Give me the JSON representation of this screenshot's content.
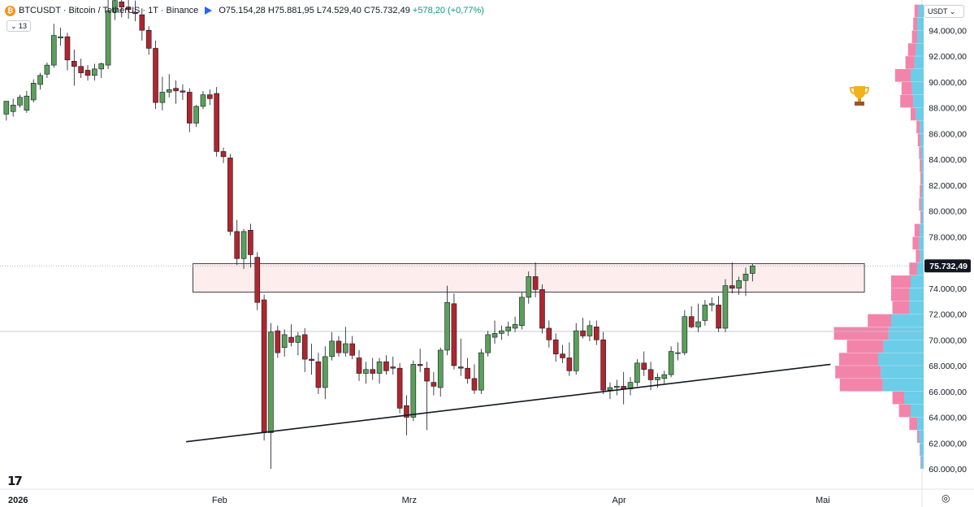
{
  "header": {
    "symbol": "BTCUSDT · Bitcoin / TetherUS · 1T · Binance",
    "open": "O75.154,28",
    "high": "H75.881,95",
    "low": "L74.529,40",
    "close": "C75.732,49",
    "change": "+578,20 (+0,77%)",
    "coin_glyph": "₿",
    "indicator_count": "13",
    "currency": "USDT",
    "logo": "17"
  },
  "colors": {
    "up": "#5aa05a",
    "down": "#b0262e",
    "zone_fill": "#fde8e8",
    "vp_pink": "#f06f9b",
    "vp_cyan": "#5bc8e6",
    "price_badge": "#131722"
  },
  "chart_data": {
    "type": "candlestick",
    "symbol": "BTCUSDT",
    "timeframe": "1T",
    "ylim": [
      59400,
      96400
    ],
    "y_ticks": [
      {
        "value": 60000,
        "label": "60.000,00"
      },
      {
        "value": 62000,
        "label": "62.000,00"
      },
      {
        "value": 64000,
        "label": "64.000,00"
      },
      {
        "value": 66000,
        "label": "66.000,00"
      },
      {
        "value": 68000,
        "label": "68.000,00"
      },
      {
        "value": 70000,
        "label": "70.000,00"
      },
      {
        "value": 72000,
        "label": "72.000,00"
      },
      {
        "value": 74000,
        "label": "74.000,00"
      },
      {
        "value": 76000,
        "label": "76.000,00"
      },
      {
        "value": 78000,
        "label": "78.000,00"
      },
      {
        "value": 80000,
        "label": "80.000,00"
      },
      {
        "value": 82000,
        "label": "82.000,00"
      },
      {
        "value": 84000,
        "label": "84.000,00"
      },
      {
        "value": 86000,
        "label": "86.000,00"
      },
      {
        "value": 88000,
        "label": "88.000,00"
      },
      {
        "value": 90000,
        "label": "90.000,00"
      },
      {
        "value": 92000,
        "label": "92.000,00"
      },
      {
        "value": 94000,
        "label": "94.000,00"
      }
    ],
    "x_labels": [
      {
        "day": 0,
        "label": "2026"
      },
      {
        "day": 31,
        "label": "Feb"
      },
      {
        "day": 59,
        "label": "Mrz"
      },
      {
        "day": 90,
        "label": "Apr"
      },
      {
        "day": 120,
        "label": "Mai"
      }
    ],
    "last_price": {
      "value": 75732.49,
      "label": "75.732,49"
    },
    "reference_line": 70650,
    "resistance_zone": {
      "from_day": 27,
      "to_day": 126,
      "low": 73700,
      "high": 75900
    },
    "trendline": {
      "from": {
        "day": 26,
        "price": 62100
      },
      "to": {
        "day": 121,
        "price": 68100
      }
    },
    "candles": [
      {
        "day": -0.5,
        "o": 87500,
        "h": 88500,
        "l": 87000,
        "c": 88500
      },
      {
        "day": 0.5,
        "o": 87700,
        "h": 88700,
        "l": 87300,
        "c": 88200
      },
      {
        "day": 1.5,
        "o": 88200,
        "h": 89000,
        "l": 88000,
        "c": 88800
      },
      {
        "day": 2.5,
        "o": 87800,
        "h": 89300,
        "l": 87600,
        "c": 88900
      },
      {
        "day": 3.5,
        "o": 88600,
        "h": 90200,
        "l": 88400,
        "c": 89900
      },
      {
        "day": 4.5,
        "o": 89800,
        "h": 90700,
        "l": 89400,
        "c": 90500
      },
      {
        "day": 5.5,
        "o": 90600,
        "h": 91500,
        "l": 90300,
        "c": 91300
      },
      {
        "day": 6.5,
        "o": 91300,
        "h": 94500,
        "l": 91100,
        "c": 93600
      },
      {
        "day": 7.5,
        "o": 93400,
        "h": 94200,
        "l": 92800,
        "c": 93500
      },
      {
        "day": 8.5,
        "o": 93500,
        "h": 93800,
        "l": 90900,
        "c": 91700
      },
      {
        "day": 9.5,
        "o": 91600,
        "h": 92500,
        "l": 89700,
        "c": 91200
      },
      {
        "day": 10.5,
        "o": 91200,
        "h": 91800,
        "l": 90300,
        "c": 90700
      },
      {
        "day": 11.5,
        "o": 90900,
        "h": 91300,
        "l": 90100,
        "c": 90500
      },
      {
        "day": 12.5,
        "o": 90500,
        "h": 91400,
        "l": 90100,
        "c": 91000
      },
      {
        "day": 13.5,
        "o": 91000,
        "h": 91500,
        "l": 90300,
        "c": 91400
      },
      {
        "day": 14.5,
        "o": 91300,
        "h": 96400,
        "l": 91000,
        "c": 95500
      },
      {
        "day": 15.5,
        "o": 95400,
        "h": 97800,
        "l": 94800,
        "c": 96300
      },
      {
        "day": 16.5,
        "o": 96200,
        "h": 97000,
        "l": 95000,
        "c": 95800
      },
      {
        "day": 17.5,
        "o": 95800,
        "h": 96500,
        "l": 94900,
        "c": 95600
      },
      {
        "day": 18.5,
        "o": 95400,
        "h": 96300,
        "l": 94700,
        "c": 95300
      },
      {
        "day": 19.5,
        "o": 95200,
        "h": 95700,
        "l": 93200,
        "c": 94000
      },
      {
        "day": 20.5,
        "o": 94000,
        "h": 94300,
        "l": 92100,
        "c": 92600
      },
      {
        "day": 21.5,
        "o": 92600,
        "h": 93200,
        "l": 87900,
        "c": 88400
      },
      {
        "day": 22.5,
        "o": 88400,
        "h": 90400,
        "l": 87800,
        "c": 89200
      },
      {
        "day": 23.5,
        "o": 89200,
        "h": 90600,
        "l": 88800,
        "c": 89400
      },
      {
        "day": 24.5,
        "o": 89500,
        "h": 90100,
        "l": 88300,
        "c": 89300
      },
      {
        "day": 25.5,
        "o": 89300,
        "h": 89800,
        "l": 88600,
        "c": 89200
      },
      {
        "day": 26.5,
        "o": 89200,
        "h": 89500,
        "l": 86100,
        "c": 86800
      },
      {
        "day": 27.5,
        "o": 86800,
        "h": 88200,
        "l": 86500,
        "c": 88100
      },
      {
        "day": 28.5,
        "o": 88100,
        "h": 89300,
        "l": 87900,
        "c": 89000
      },
      {
        "day": 29.5,
        "o": 89000,
        "h": 89400,
        "l": 88200,
        "c": 88700
      },
      {
        "day": 30.5,
        "o": 89100,
        "h": 89600,
        "l": 84200,
        "c": 84600
      },
      {
        "day": 31.5,
        "o": 84600,
        "h": 84900,
        "l": 83700,
        "c": 84200
      },
      {
        "day": 32.5,
        "o": 84100,
        "h": 84400,
        "l": 78100,
        "c": 78400
      },
      {
        "day": 33.5,
        "o": 78400,
        "h": 79300,
        "l": 75800,
        "c": 76300
      },
      {
        "day": 34.5,
        "o": 76300,
        "h": 78600,
        "l": 75500,
        "c": 78400
      },
      {
        "day": 35.5,
        "o": 78500,
        "h": 79000,
        "l": 75600,
        "c": 76600
      },
      {
        "day": 36.5,
        "o": 76400,
        "h": 76800,
        "l": 72300,
        "c": 72900
      },
      {
        "day": 37.5,
        "o": 73100,
        "h": 73500,
        "l": 62200,
        "c": 62800
      },
      {
        "day": 38.5,
        "o": 62800,
        "h": 71300,
        "l": 60000,
        "c": 70600
      },
      {
        "day": 39.5,
        "o": 70700,
        "h": 71100,
        "l": 68600,
        "c": 69000
      },
      {
        "day": 40.5,
        "o": 69400,
        "h": 70800,
        "l": 68700,
        "c": 70400
      },
      {
        "day": 41.5,
        "o": 70200,
        "h": 71200,
        "l": 69500,
        "c": 69800
      },
      {
        "day": 42.5,
        "o": 69800,
        "h": 70600,
        "l": 68800,
        "c": 70300
      },
      {
        "day": 43.5,
        "o": 70400,
        "h": 70900,
        "l": 67500,
        "c": 68500
      },
      {
        "day": 44.5,
        "o": 68500,
        "h": 69700,
        "l": 67300,
        "c": 68400
      },
      {
        "day": 45.5,
        "o": 68300,
        "h": 69000,
        "l": 65800,
        "c": 66300
      },
      {
        "day": 46.5,
        "o": 66300,
        "h": 69500,
        "l": 65400,
        "c": 68700
      },
      {
        "day": 47.5,
        "o": 68700,
        "h": 70600,
        "l": 68400,
        "c": 69900
      },
      {
        "day": 48.5,
        "o": 69900,
        "h": 70300,
        "l": 68700,
        "c": 69000
      },
      {
        "day": 49.5,
        "o": 69000,
        "h": 71000,
        "l": 68700,
        "c": 69700
      },
      {
        "day": 50.5,
        "o": 69700,
        "h": 70300,
        "l": 68500,
        "c": 68800
      },
      {
        "day": 51.5,
        "o": 68600,
        "h": 69200,
        "l": 66800,
        "c": 67400
      },
      {
        "day": 52.5,
        "o": 67400,
        "h": 68300,
        "l": 66600,
        "c": 67700
      },
      {
        "day": 53.5,
        "o": 67700,
        "h": 68600,
        "l": 66900,
        "c": 67400
      },
      {
        "day": 54.5,
        "o": 67400,
        "h": 68600,
        "l": 66600,
        "c": 68300
      },
      {
        "day": 55.5,
        "o": 68300,
        "h": 68800,
        "l": 67300,
        "c": 67600
      },
      {
        "day": 56.5,
        "o": 67900,
        "h": 68700,
        "l": 67300,
        "c": 67800
      },
      {
        "day": 57.5,
        "o": 67800,
        "h": 68200,
        "l": 64300,
        "c": 64700
      },
      {
        "day": 58.5,
        "o": 64900,
        "h": 65700,
        "l": 62600,
        "c": 64000
      },
      {
        "day": 59.5,
        "o": 64000,
        "h": 68400,
        "l": 63700,
        "c": 68100
      },
      {
        "day": 60.5,
        "o": 68100,
        "h": 69300,
        "l": 67500,
        "c": 68000
      },
      {
        "day": 61.5,
        "o": 67800,
        "h": 68300,
        "l": 63000,
        "c": 66800
      },
      {
        "day": 62.5,
        "o": 66700,
        "h": 67500,
        "l": 65700,
        "c": 66400
      },
      {
        "day": 63.5,
        "o": 66300,
        "h": 69400,
        "l": 65600,
        "c": 69200
      },
      {
        "day": 64.5,
        "o": 69200,
        "h": 74200,
        "l": 68800,
        "c": 72900
      },
      {
        "day": 65.5,
        "o": 72800,
        "h": 73600,
        "l": 67700,
        "c": 68000
      },
      {
        "day": 66.5,
        "o": 67900,
        "h": 70100,
        "l": 67200,
        "c": 67800
      },
      {
        "day": 67.5,
        "o": 67800,
        "h": 68600,
        "l": 66600,
        "c": 67000
      },
      {
        "day": 68.5,
        "o": 67000,
        "h": 68100,
        "l": 65800,
        "c": 66100
      },
      {
        "day": 69.5,
        "o": 66100,
        "h": 69300,
        "l": 65800,
        "c": 69000
      },
      {
        "day": 70.5,
        "o": 69000,
        "h": 70700,
        "l": 68700,
        "c": 70400
      },
      {
        "day": 71.5,
        "o": 70200,
        "h": 71500,
        "l": 69700,
        "c": 70500
      },
      {
        "day": 72.5,
        "o": 70500,
        "h": 71100,
        "l": 70000,
        "c": 70700
      },
      {
        "day": 73.5,
        "o": 70700,
        "h": 71400,
        "l": 70300,
        "c": 71000
      },
      {
        "day": 74.5,
        "o": 70900,
        "h": 71800,
        "l": 70600,
        "c": 71200
      },
      {
        "day": 75.5,
        "o": 71100,
        "h": 73700,
        "l": 70800,
        "c": 73300
      },
      {
        "day": 76.5,
        "o": 73300,
        "h": 75300,
        "l": 72800,
        "c": 74900
      },
      {
        "day": 77.5,
        "o": 74900,
        "h": 76000,
        "l": 73300,
        "c": 73900
      },
      {
        "day": 78.5,
        "o": 73900,
        "h": 74300,
        "l": 70500,
        "c": 70900
      },
      {
        "day": 79.5,
        "o": 70900,
        "h": 71500,
        "l": 69400,
        "c": 70000
      },
      {
        "day": 80.5,
        "o": 70000,
        "h": 70500,
        "l": 68300,
        "c": 68900
      },
      {
        "day": 81.5,
        "o": 68900,
        "h": 69600,
        "l": 68200,
        "c": 68600
      },
      {
        "day": 82.5,
        "o": 68600,
        "h": 69800,
        "l": 67200,
        "c": 67600
      },
      {
        "day": 83.5,
        "o": 67600,
        "h": 71300,
        "l": 67300,
        "c": 70700
      },
      {
        "day": 84.5,
        "o": 70700,
        "h": 71700,
        "l": 70100,
        "c": 70300
      },
      {
        "day": 85.5,
        "o": 70300,
        "h": 71500,
        "l": 69900,
        "c": 71100
      },
      {
        "day": 86.5,
        "o": 71000,
        "h": 71500,
        "l": 69600,
        "c": 70000
      },
      {
        "day": 87.5,
        "o": 70000,
        "h": 70600,
        "l": 65800,
        "c": 66100
      },
      {
        "day": 88.5,
        "o": 66100,
        "h": 66700,
        "l": 65400,
        "c": 66300
      },
      {
        "day": 89.5,
        "o": 66300,
        "h": 66900,
        "l": 65700,
        "c": 66400
      },
      {
        "day": 90.5,
        "o": 66400,
        "h": 67500,
        "l": 65000,
        "c": 66200
      },
      {
        "day": 91.5,
        "o": 66200,
        "h": 67100,
        "l": 65700,
        "c": 66700
      },
      {
        "day": 92.5,
        "o": 66700,
        "h": 68500,
        "l": 66400,
        "c": 68200
      },
      {
        "day": 93.5,
        "o": 68200,
        "h": 69100,
        "l": 67200,
        "c": 67700
      },
      {
        "day": 94.5,
        "o": 67700,
        "h": 68300,
        "l": 66100,
        "c": 66900
      },
      {
        "day": 95.5,
        "o": 66900,
        "h": 67400,
        "l": 66300,
        "c": 67100
      },
      {
        "day": 96.5,
        "o": 67000,
        "h": 67600,
        "l": 66600,
        "c": 67300
      },
      {
        "day": 97.5,
        "o": 67300,
        "h": 69500,
        "l": 67100,
        "c": 69100
      },
      {
        "day": 98.5,
        "o": 69000,
        "h": 69800,
        "l": 68400,
        "c": 69000
      },
      {
        "day": 99.5,
        "o": 69000,
        "h": 72300,
        "l": 68800,
        "c": 71800
      },
      {
        "day": 100.5,
        "o": 71800,
        "h": 72600,
        "l": 70900,
        "c": 71000
      },
      {
        "day": 101.5,
        "o": 71000,
        "h": 72800,
        "l": 70600,
        "c": 71400
      },
      {
        "day": 102.5,
        "o": 71500,
        "h": 73100,
        "l": 71100,
        "c": 72700
      },
      {
        "day": 103.5,
        "o": 72700,
        "h": 73300,
        "l": 72200,
        "c": 72800
      },
      {
        "day": 104.5,
        "o": 72700,
        "h": 73400,
        "l": 70600,
        "c": 70900
      },
      {
        "day": 105.5,
        "o": 70900,
        "h": 74700,
        "l": 70600,
        "c": 74200
      },
      {
        "day": 106.5,
        "o": 74200,
        "h": 76000,
        "l": 73600,
        "c": 74000
      },
      {
        "day": 107.5,
        "o": 74000,
        "h": 74900,
        "l": 73500,
        "c": 74600
      },
      {
        "day": 108.5,
        "o": 74600,
        "h": 75600,
        "l": 73400,
        "c": 75100
      },
      {
        "day": 109.5,
        "o": 75150,
        "h": 75880,
        "l": 74530,
        "c": 75730
      }
    ],
    "volume_profile": [
      {
        "price": 60500,
        "buy": 4,
        "sell": 1
      },
      {
        "price": 61500,
        "buy": 5,
        "sell": 1
      },
      {
        "price": 62500,
        "buy": 7,
        "sell": 3
      },
      {
        "price": 63500,
        "buy": 10,
        "sell": 12
      },
      {
        "price": 64500,
        "buy": 20,
        "sell": 18
      },
      {
        "price": 65500,
        "buy": 30,
        "sell": 18
      },
      {
        "price": 66500,
        "buy": 63,
        "sell": 66
      },
      {
        "price": 67500,
        "buy": 66,
        "sell": 70
      },
      {
        "price": 68500,
        "buy": 70,
        "sell": 60
      },
      {
        "price": 69500,
        "buy": 62,
        "sell": 56
      },
      {
        "price": 70500,
        "buy": 54,
        "sell": 84
      },
      {
        "price": 71500,
        "buy": 50,
        "sell": 36
      },
      {
        "price": 72500,
        "buy": 22,
        "sell": 26
      },
      {
        "price": 73500,
        "buy": 22,
        "sell": 28
      },
      {
        "price": 74500,
        "buy": 20,
        "sell": 30
      },
      {
        "price": 75500,
        "buy": 10,
        "sell": 12
      },
      {
        "price": 76500,
        "buy": 6,
        "sell": 6
      },
      {
        "price": 77500,
        "buy": 7,
        "sell": 10
      },
      {
        "price": 78500,
        "buy": 6,
        "sell": 8
      },
      {
        "price": 79500,
        "buy": 3,
        "sell": 2
      },
      {
        "price": 80500,
        "buy": 4,
        "sell": 3
      },
      {
        "price": 81500,
        "buy": 3,
        "sell": 3
      },
      {
        "price": 82500,
        "buy": 3,
        "sell": 2
      },
      {
        "price": 83500,
        "buy": 3,
        "sell": 3
      },
      {
        "price": 84500,
        "buy": 4,
        "sell": 3
      },
      {
        "price": 85500,
        "buy": 5,
        "sell": 4
      },
      {
        "price": 86500,
        "buy": 6,
        "sell": 5
      },
      {
        "price": 87500,
        "buy": 12,
        "sell": 8
      },
      {
        "price": 88500,
        "buy": 16,
        "sell": 20
      },
      {
        "price": 89500,
        "buy": 18,
        "sell": 16
      },
      {
        "price": 90500,
        "buy": 20,
        "sell": 24
      },
      {
        "price": 91500,
        "buy": 14,
        "sell": 14
      },
      {
        "price": 92500,
        "buy": 12,
        "sell": 12
      },
      {
        "price": 93500,
        "buy": 10,
        "sell": 8
      },
      {
        "price": 94500,
        "buy": 10,
        "sell": 6
      },
      {
        "price": 95500,
        "buy": 8,
        "sell": 6
      }
    ]
  }
}
